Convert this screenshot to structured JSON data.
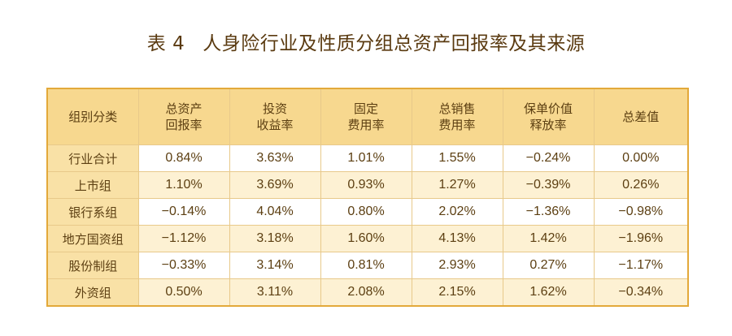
{
  "title": {
    "number": "表 4",
    "text": "人身险行业及性质分组总资产回报率及其来源"
  },
  "table": {
    "headers": [
      [
        "组别分类"
      ],
      [
        "总资产",
        "回报率"
      ],
      [
        "投资",
        "收益率"
      ],
      [
        "固定",
        "费用率"
      ],
      [
        "总销售",
        "费用率"
      ],
      [
        "保单价值",
        "释放率"
      ],
      [
        "总差值"
      ]
    ],
    "rows": [
      [
        "行业合计",
        "0.84%",
        "3.63%",
        "1.01%",
        "1.55%",
        "−0.24%",
        "0.00%"
      ],
      [
        "上市组",
        "1.10%",
        "3.69%",
        "0.93%",
        "1.27%",
        "−0.39%",
        "0.26%"
      ],
      [
        "银行系组",
        "−0.14%",
        "4.04%",
        "0.80%",
        "2.02%",
        "−1.36%",
        "−0.98%"
      ],
      [
        "地方国资组",
        "−1.12%",
        "3.18%",
        "1.60%",
        "4.13%",
        "1.42%",
        "−1.96%"
      ],
      [
        "股份制组",
        "−0.33%",
        "3.14%",
        "0.81%",
        "2.93%",
        "0.27%",
        "−1.17%"
      ],
      [
        "外资组",
        "0.50%",
        "3.11%",
        "2.08%",
        "2.15%",
        "1.62%",
        "−0.34%"
      ]
    ]
  },
  "colors": {
    "header_bg": "#f7d88f",
    "category_bg": "#f9e1a6",
    "stripe_bg": "#fdf1d3",
    "border": "#e3a93a",
    "text": "#5c3f12"
  }
}
